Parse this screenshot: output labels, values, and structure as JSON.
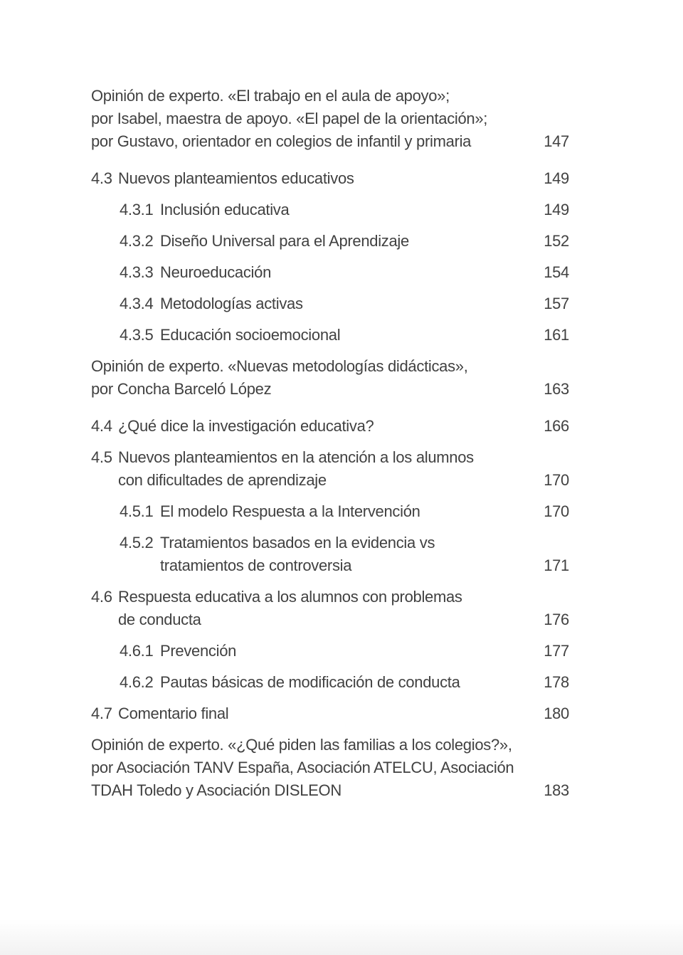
{
  "page": {
    "colors": {
      "background": "#ffffff",
      "text": "#414141",
      "bottom_shade": "#f2f2f2"
    }
  },
  "toc": {
    "entries": [
      {
        "type": "opinion",
        "lines": [
          "Opinión de experto. «El trabajo en el aula de apoyo»;",
          "por Isabel, maestra de apoyo. «El papel de la orientación»;",
          "por Gustavo, orientador en colegios de infantil y primaria"
        ],
        "page": "147"
      },
      {
        "type": "l1",
        "number": "4.3",
        "lines": [
          "Nuevos planteamientos educativos"
        ],
        "page": "149"
      },
      {
        "type": "l2",
        "number": "4.3.1",
        "lines": [
          "Inclusión educativa"
        ],
        "page": "149"
      },
      {
        "type": "l2",
        "number": "4.3.2",
        "lines": [
          "Diseño Universal para el Aprendizaje"
        ],
        "page": "152"
      },
      {
        "type": "l2",
        "number": "4.3.3",
        "lines": [
          "Neuroeducación"
        ],
        "page": "154"
      },
      {
        "type": "l2",
        "number": "4.3.4",
        "lines": [
          "Metodologías activas"
        ],
        "page": "157"
      },
      {
        "type": "l2",
        "number": "4.3.5",
        "lines": [
          "Educación socioemocional"
        ],
        "page": "161"
      },
      {
        "type": "opinion",
        "lines": [
          "Opinión de experto. «Nuevas metodologías didácticas»,",
          "por Concha Barceló López"
        ],
        "page": "163"
      },
      {
        "type": "l1",
        "number": "4.4",
        "lines": [
          "¿Qué dice la investigación educativa?"
        ],
        "page": "166"
      },
      {
        "type": "l1",
        "number": "4.5",
        "lines": [
          "Nuevos planteamientos en la atención a los alumnos",
          "con dificultades de aprendizaje"
        ],
        "page": "170"
      },
      {
        "type": "l2",
        "number": "4.5.1",
        "lines": [
          "El modelo Respuesta a la Intervención"
        ],
        "page": "170"
      },
      {
        "type": "l2",
        "number": "4.5.2",
        "lines": [
          "Tratamientos basados en la evidencia vs",
          "tratamientos de controversia"
        ],
        "page": "171"
      },
      {
        "type": "l1",
        "number": "4.6",
        "lines": [
          "Respuesta educativa a los alumnos con problemas",
          "de conducta"
        ],
        "page": "176"
      },
      {
        "type": "l2",
        "number": "4.6.1",
        "lines": [
          "Prevención"
        ],
        "page": "177"
      },
      {
        "type": "l2",
        "number": "4.6.2",
        "lines": [
          "Pautas básicas de modificación de conducta"
        ],
        "page": "178"
      },
      {
        "type": "l1",
        "number": "4.7",
        "lines": [
          "Comentario final"
        ],
        "page": "180"
      },
      {
        "type": "opinion",
        "lines": [
          "Opinión de experto. «¿Qué piden las familias a los colegios?»,",
          "por Asociación TANV España, Asociación ATELCU, Asociación",
          "TDAH Toledo y Asociación DISLEON"
        ],
        "page": "183"
      }
    ]
  }
}
